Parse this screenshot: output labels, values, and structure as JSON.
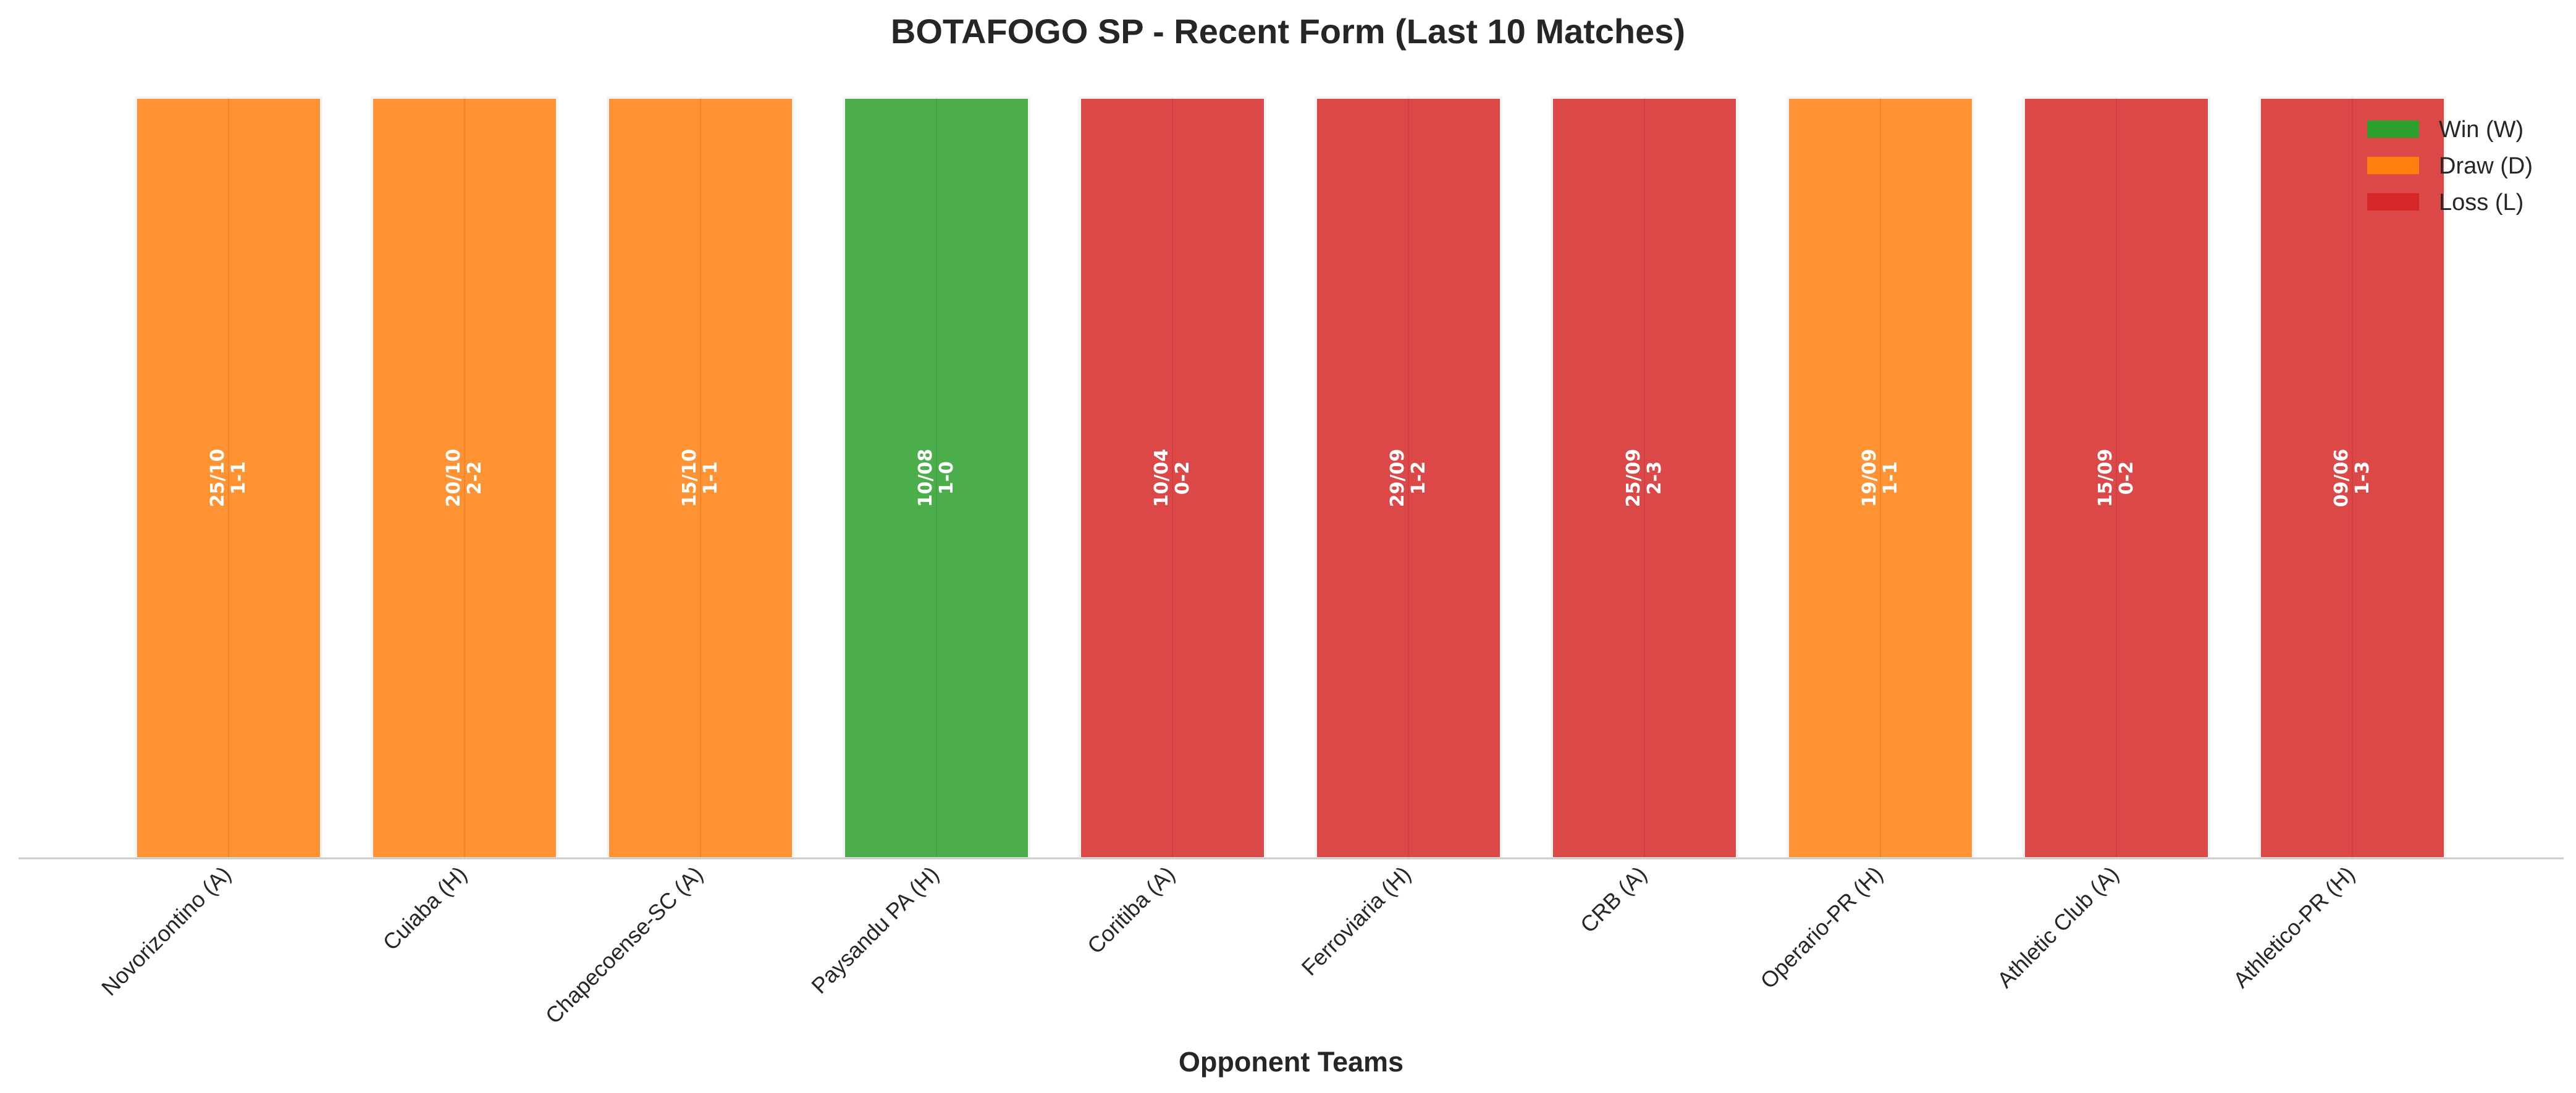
{
  "chart_data": {
    "type": "bar",
    "title": "BOTAFOGO SP - Recent Form (Last 10 Matches)",
    "xlabel": "Opponent Teams",
    "ylabel": "",
    "ylim": [
      0,
      1
    ],
    "grid": false,
    "legend_position": "top-right",
    "categories": [
      "Novorizontino (A)",
      "Cuiaba (H)",
      "Chapecoense-SC (A)",
      "Paysandu PA (H)",
      "Coritiba (A)",
      "Ferroviaria (H)",
      "CRB (A)",
      "Operario-PR (H)",
      "Athletic Club (A)",
      "Athletico-PR (H)"
    ],
    "values": [
      1,
      1,
      1,
      1,
      1,
      1,
      1,
      1,
      1,
      1
    ],
    "results": [
      "D",
      "D",
      "D",
      "W",
      "L",
      "L",
      "L",
      "D",
      "L",
      "L"
    ],
    "dates": [
      "25/10",
      "20/10",
      "15/10",
      "10/08",
      "10/04",
      "29/09",
      "25/09",
      "19/09",
      "15/09",
      "09/06"
    ],
    "scores": [
      "1-1",
      "2-2",
      "1-1",
      "1-0",
      "0-2",
      "1-2",
      "2-3",
      "1-1",
      "0-2",
      "1-3"
    ],
    "legend": [
      {
        "key": "W",
        "label": "Win (W)",
        "color": "#2ca02c"
      },
      {
        "key": "D",
        "label": "Draw (D)",
        "color": "#ff7f0e"
      },
      {
        "key": "L",
        "label": "Loss (L)",
        "color": "#d62728"
      }
    ]
  }
}
